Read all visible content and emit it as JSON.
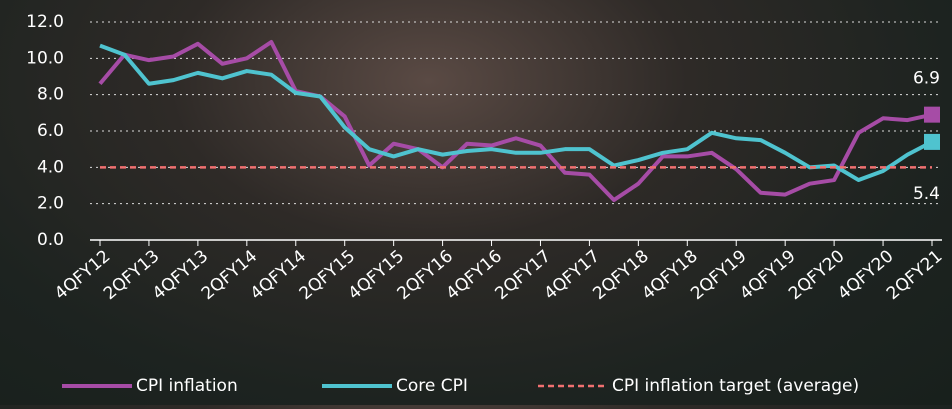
{
  "chart_data": {
    "type": "line",
    "categories": [
      "4QFY12",
      null,
      "2QFY13",
      null,
      "4QFY13",
      null,
      "2QFY14",
      null,
      "4QFY14",
      null,
      "2QFY15",
      null,
      "4QFY15",
      null,
      "2QFY16",
      null,
      "4QFY16",
      null,
      "2QFY17",
      null,
      "4QFY17",
      null,
      "2QFY18",
      null,
      "4QFY18",
      null,
      "2QFY19",
      null,
      "4QFY19",
      null,
      "2QFY20",
      null,
      "4QFY20",
      null,
      "2QFY21"
    ],
    "series": [
      {
        "name": "CPI inflation",
        "color": "#a64ca6",
        "end_label": true,
        "values": [
          8.6,
          10.2,
          9.9,
          10.1,
          10.8,
          9.7,
          10.0,
          10.9,
          8.2,
          7.9,
          6.8,
          4.1,
          5.3,
          5.0,
          4.0,
          5.3,
          5.2,
          5.6,
          5.2,
          3.7,
          3.6,
          2.2,
          3.1,
          4.6,
          4.6,
          4.8,
          3.9,
          2.6,
          2.5,
          3.1,
          3.3,
          5.9,
          6.7,
          6.6,
          6.9
        ]
      },
      {
        "name": "Core CPI",
        "color": "#4fc3cf",
        "end_label": true,
        "values": [
          10.7,
          10.2,
          8.6,
          8.8,
          9.2,
          8.9,
          9.3,
          9.1,
          8.1,
          7.9,
          6.2,
          5.0,
          4.6,
          5.0,
          4.7,
          4.9,
          5.0,
          4.8,
          4.8,
          5.0,
          5.0,
          4.1,
          4.4,
          4.8,
          5.0,
          5.9,
          5.6,
          5.5,
          4.8,
          4.0,
          4.1,
          3.3,
          3.8,
          4.7,
          5.4
        ]
      },
      {
        "name": "CPI inflation target (average)",
        "color": "#f07070",
        "dashed": true,
        "values": [
          4.0,
          4.0,
          4.0,
          4.0,
          4.0,
          4.0,
          4.0,
          4.0,
          4.0,
          4.0,
          4.0,
          4.0,
          4.0,
          4.0,
          4.0,
          4.0,
          4.0,
          4.0,
          4.0,
          4.0,
          4.0,
          4.0,
          4.0,
          4.0,
          4.0,
          4.0,
          4.0,
          4.0,
          4.0,
          4.0,
          4.0,
          4.0,
          4.0,
          4.0,
          4.0
        ]
      }
    ],
    "ylim": [
      0,
      12
    ],
    "yticks": [
      {
        "value": 0,
        "label": "0.0"
      },
      {
        "value": 2,
        "label": "2.0"
      },
      {
        "value": 4,
        "label": "4.0"
      },
      {
        "value": 6,
        "label": "6.0"
      },
      {
        "value": 8,
        "label": "8.0"
      },
      {
        "value": 10,
        "label": "10.0"
      },
      {
        "value": 12,
        "label": "12.0"
      }
    ],
    "grid": true
  }
}
